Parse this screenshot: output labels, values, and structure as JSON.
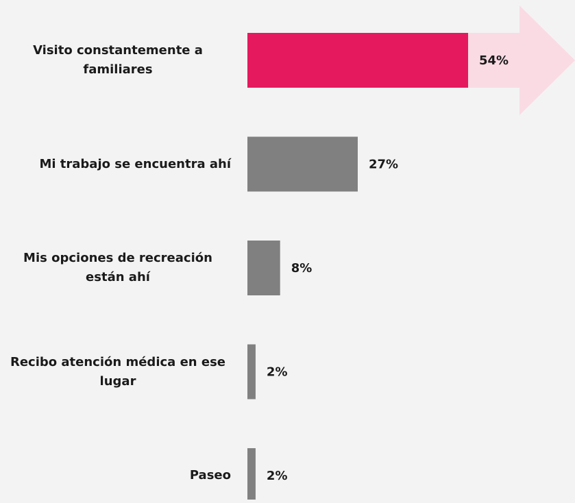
{
  "chart_data": {
    "type": "bar",
    "orientation": "horizontal",
    "categories": [
      "Visito constantemente a familiares",
      "Mi trabajo se encuentra ahí",
      "Mis opciones de recreación están ahí",
      "Recibo atención médica en ese lugar",
      "Paseo"
    ],
    "values": [
      54,
      27,
      8,
      2,
      2
    ],
    "value_labels": [
      "54%",
      "27%",
      "8%",
      "2%",
      "2%"
    ],
    "colors": [
      "#e5195e",
      "#808080",
      "#808080",
      "#808080",
      "#808080"
    ]
  }
}
